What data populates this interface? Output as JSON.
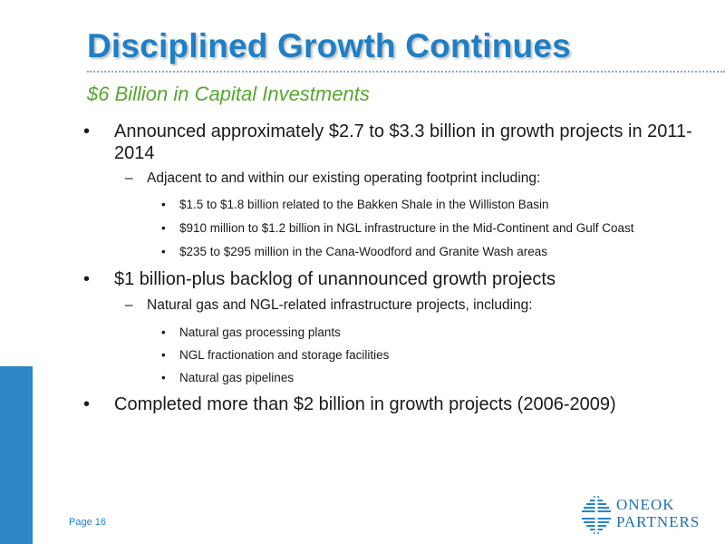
{
  "header": {
    "title": "Disciplined Growth Continues",
    "subtitle": "$6 Billion in Capital Investments"
  },
  "bullets": [
    {
      "text": "Announced approximately $2.7 to $3.3 billion in growth projects in 2011-2014",
      "sub": [
        {
          "text": "Adjacent to and within our existing operating footprint including:",
          "items": [
            "$1.5 to $1.8 billion related to the Bakken Shale in the Williston Basin",
            "$910 million to $1.2 billion in NGL infrastructure in the Mid-Continent and Gulf Coast",
            "$235 to $295 million in the Cana-Woodford and Granite Wash areas"
          ]
        }
      ]
    },
    {
      "text": "$1 billion-plus backlog of unannounced growth projects",
      "sub": [
        {
          "text": "Natural gas and NGL-related infrastructure projects, including:",
          "items": [
            "Natural gas processing plants",
            "NGL fractionation and storage facilities",
            "Natural gas pipelines"
          ]
        }
      ]
    },
    {
      "text": "Completed more than $2 billion in growth projects (2006-2009)",
      "sub": []
    }
  ],
  "symbols": {
    "bullet": "•",
    "dash": "–"
  },
  "footer": {
    "page": "Page 16",
    "logo_line1": "ONEOK",
    "logo_line2": "PARTNERS"
  },
  "colors": {
    "title": "#1f7fc4",
    "subtitle": "#55a82f",
    "accent_bar": "#2f86c6"
  }
}
